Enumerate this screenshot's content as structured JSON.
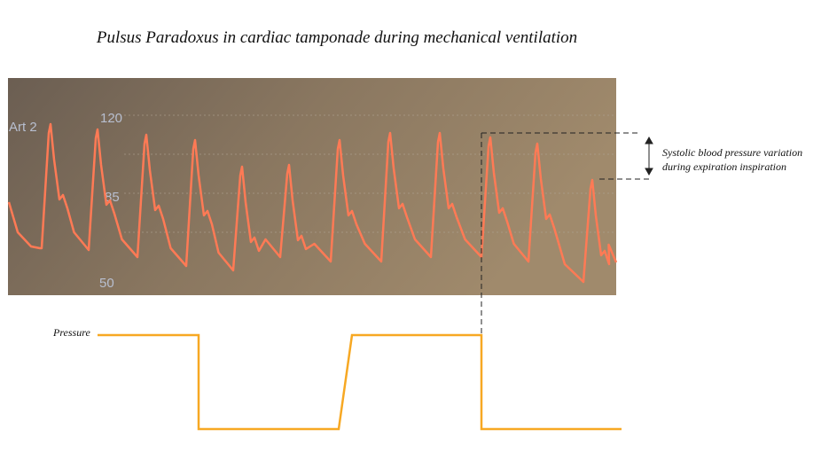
{
  "title": "Pulsus Paradoxus in cardiac tamponade during mechanical ventilation",
  "monitor": {
    "channel": "Art 2",
    "scale_labels": [
      "120",
      "85",
      "50"
    ]
  },
  "annotation": {
    "lines": [
      "Systolic blood pressure variation",
      "during expiration inspiration"
    ]
  },
  "pressure_label": "Pressure"
}
